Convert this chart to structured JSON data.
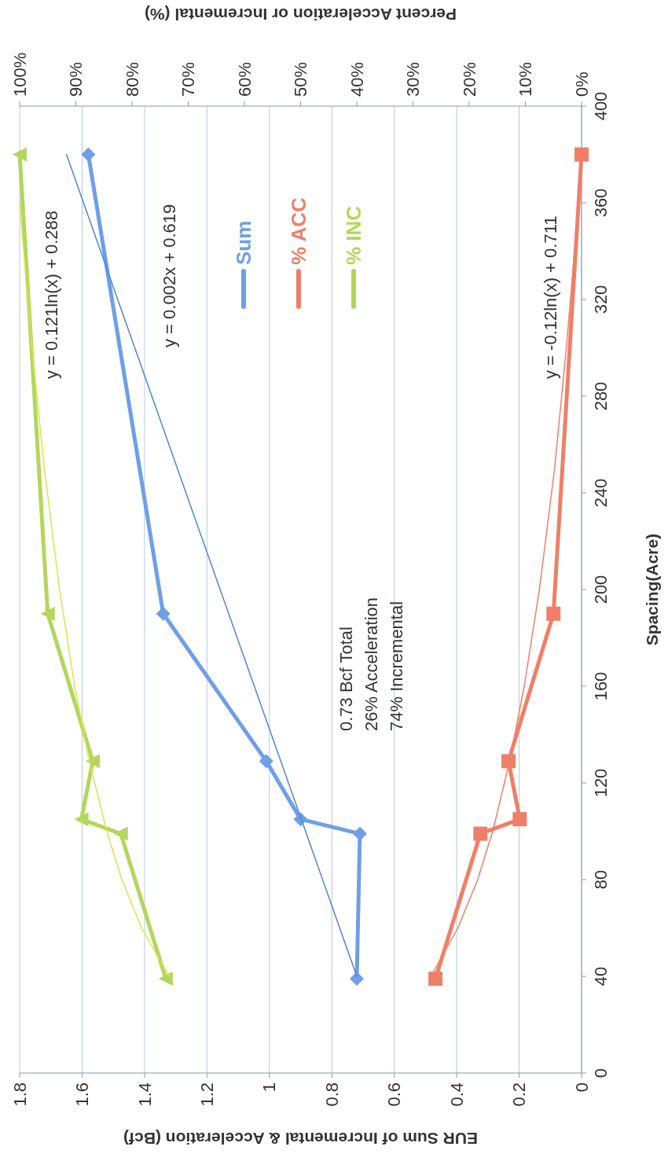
{
  "chart_data": {
    "type": "line",
    "xlabel": "EUR Sum of Incremental & Acceleration (Bcf)",
    "x2label": "Percent Acceleration or Incremental (%)",
    "ylabel": "Spacing(Acre)",
    "ylim": [
      0,
      400
    ],
    "yticks": [
      0,
      40,
      80,
      120,
      160,
      200,
      240,
      280,
      320,
      360,
      400
    ],
    "xlim": [
      1.8,
      0
    ],
    "xticks": [
      1.8,
      1.6,
      1.4,
      1.2,
      1,
      0.8,
      0.6,
      0.4,
      0.2,
      0
    ],
    "x2lim": [
      100,
      0
    ],
    "x2ticks": [
      {
        "value": 100,
        "label": "100%"
      },
      {
        "value": 90,
        "label": "90%"
      },
      {
        "value": 80,
        "label": "80%"
      },
      {
        "value": 70,
        "label": "70%"
      },
      {
        "value": 60,
        "label": "60%"
      },
      {
        "value": 50,
        "label": "50%"
      },
      {
        "value": 40,
        "label": "40%"
      },
      {
        "value": 30,
        "label": "30%"
      },
      {
        "value": 20,
        "label": "20%"
      },
      {
        "value": 10,
        "label": "10%"
      },
      {
        "value": 0,
        "label": "0%"
      }
    ],
    "grid": "x",
    "legend": "top",
    "series": [
      {
        "name": "Sum",
        "color": "#6f9fe6",
        "marker": "diamond",
        "x": [
          0.72,
          0.71,
          0.9,
          1.01,
          1.34,
          1.58
        ],
        "values": [
          39,
          99,
          105,
          129,
          190,
          380
        ]
      },
      {
        "name": "% ACC",
        "color": "#ef7f68",
        "marker": "square",
        "axis": "x2",
        "x": [
          26,
          18,
          11,
          13,
          5,
          0
        ],
        "values": [
          39,
          99,
          105,
          129,
          190,
          380
        ]
      },
      {
        "name": "% INC",
        "color": "#b3d65c",
        "marker": "triangle",
        "axis": "x2",
        "x": [
          74,
          82,
          89,
          87,
          95,
          100
        ],
        "values": [
          39,
          99,
          105,
          129,
          190,
          380
        ]
      },
      {
        "type": "line",
        "color": "#4f86d8",
        "marker": "none",
        "x": [
          0.72,
          1.65
        ],
        "values": [
          40,
          380
        ]
      },
      {
        "type": "line",
        "color": "#ef7f68",
        "marker": "none",
        "axis": "x2",
        "x": [
          26.8,
          22,
          18.5,
          15.8,
          12.7,
          10.2,
          7.5,
          4.8,
          2.7,
          0.9
        ],
        "values": [
          40,
          60,
          80,
          100,
          130,
          160,
          200,
          250,
          300,
          350
        ]
      },
      {
        "type": "line",
        "color": "#d6e84a",
        "marker": "none",
        "axis": "x2",
        "x": [
          73.4,
          78.3,
          81.8,
          84.5,
          87.7,
          90.2,
          92.9,
          95.6,
          97.8,
          100
        ],
        "values": [
          40,
          60,
          80,
          100,
          130,
          160,
          200,
          250,
          300,
          360
        ]
      }
    ],
    "annotations": [
      "y = 0.121ln(x) + 0.288",
      "y = 0.002x + 0.619",
      "y = -0.12ln(x) + 0.711",
      "0.73 Bcf Total",
      "26% Acceleration",
      "74% Incremental"
    ]
  }
}
